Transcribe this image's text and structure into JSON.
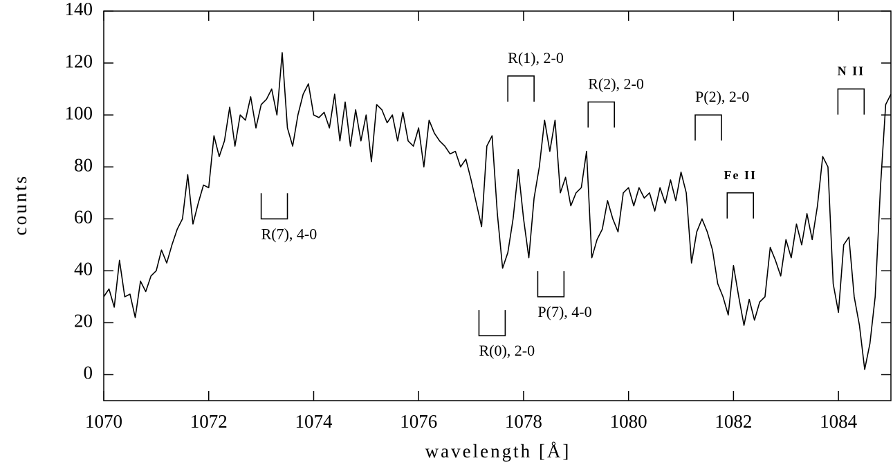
{
  "chart_data": {
    "type": "line",
    "xlabel": "wavelength [Å]",
    "ylabel": "counts",
    "xlim": [
      1070,
      1085
    ],
    "ylim": [
      -10,
      140
    ],
    "xticks": [
      1070,
      1072,
      1074,
      1076,
      1078,
      1080,
      1082,
      1084
    ],
    "yticks": [
      0,
      20,
      40,
      60,
      80,
      100,
      120,
      140
    ],
    "color": "#000000",
    "x": [
      1070.0,
      1070.1,
      1070.2,
      1070.3,
      1070.4,
      1070.5,
      1070.6,
      1070.7,
      1070.8,
      1070.9,
      1071.0,
      1071.1,
      1071.2,
      1071.3,
      1071.4,
      1071.5,
      1071.6,
      1071.7,
      1071.8,
      1071.9,
      1072.0,
      1072.1,
      1072.2,
      1072.3,
      1072.4,
      1072.5,
      1072.6,
      1072.7,
      1072.8,
      1072.9,
      1073.0,
      1073.1,
      1073.2,
      1073.3,
      1073.4,
      1073.5,
      1073.6,
      1073.7,
      1073.8,
      1073.9,
      1074.0,
      1074.1,
      1074.2,
      1074.3,
      1074.4,
      1074.5,
      1074.6,
      1074.7,
      1074.8,
      1074.9,
      1075.0,
      1075.1,
      1075.2,
      1075.3,
      1075.4,
      1075.5,
      1075.6,
      1075.7,
      1075.8,
      1075.9,
      1076.0,
      1076.1,
      1076.2,
      1076.3,
      1076.4,
      1076.5,
      1076.6,
      1076.7,
      1076.8,
      1076.9,
      1077.0,
      1077.1,
      1077.2,
      1077.3,
      1077.4,
      1077.5,
      1077.6,
      1077.7,
      1077.8,
      1077.9,
      1078.0,
      1078.1,
      1078.2,
      1078.3,
      1078.4,
      1078.5,
      1078.6,
      1078.7,
      1078.8,
      1078.9,
      1079.0,
      1079.1,
      1079.2,
      1079.3,
      1079.4,
      1079.5,
      1079.6,
      1079.7,
      1079.8,
      1079.9,
      1080.0,
      1080.1,
      1080.2,
      1080.3,
      1080.4,
      1080.5,
      1080.6,
      1080.7,
      1080.8,
      1080.9,
      1081.0,
      1081.1,
      1081.2,
      1081.3,
      1081.4,
      1081.5,
      1081.6,
      1081.7,
      1081.8,
      1081.9,
      1082.0,
      1082.1,
      1082.2,
      1082.3,
      1082.4,
      1082.5,
      1082.6,
      1082.7,
      1082.8,
      1082.9,
      1083.0,
      1083.1,
      1083.2,
      1083.3,
      1083.4,
      1083.5,
      1083.6,
      1083.7,
      1083.8,
      1083.9,
      1084.0,
      1084.1,
      1084.2,
      1084.3,
      1084.4,
      1084.5,
      1084.6,
      1084.7,
      1084.8,
      1084.9,
      1085.0
    ],
    "values": [
      30,
      33,
      26,
      44,
      30,
      31,
      22,
      36,
      32,
      38,
      40,
      48,
      43,
      50,
      56,
      60,
      77,
      58,
      66,
      73,
      72,
      92,
      84,
      90,
      103,
      88,
      100,
      98,
      107,
      95,
      104,
      106,
      110,
      100,
      124,
      95,
      88,
      100,
      108,
      112,
      100,
      99,
      101,
      95,
      108,
      90,
      105,
      88,
      102,
      90,
      100,
      82,
      104,
      102,
      97,
      100,
      90,
      101,
      90,
      88,
      95,
      80,
      98,
      93,
      90,
      88,
      85,
      86,
      80,
      83,
      75,
      66,
      57,
      88,
      92,
      62,
      41,
      47,
      60,
      79,
      60,
      45,
      68,
      80,
      98,
      86,
      98,
      70,
      76,
      65,
      70,
      72,
      86,
      45,
      52,
      56,
      67,
      60,
      55,
      70,
      72,
      65,
      72,
      68,
      70,
      63,
      72,
      66,
      75,
      67,
      78,
      70,
      43,
      55,
      60,
      55,
      48,
      35,
      30,
      23,
      42,
      30,
      19,
      29,
      21,
      28,
      30,
      49,
      44,
      38,
      52,
      45,
      58,
      50,
      62,
      52,
      65,
      84,
      80,
      35,
      24,
      50,
      53,
      30,
      19,
      2,
      12,
      30,
      72,
      104,
      108
    ],
    "annotations": [
      {
        "label": "R(7), 4-0",
        "x": [
          1073.0,
          1073.5
        ],
        "y": 60,
        "side": "below"
      },
      {
        "label": "R(0), 2-0",
        "x": [
          1077.15,
          1077.65
        ],
        "y": 15,
        "side": "below"
      },
      {
        "label": "P(7), 4-0",
        "x": [
          1078.27,
          1078.77
        ],
        "y": 30,
        "side": "below"
      },
      {
        "label": "R(1), 2-0",
        "x": [
          1077.7,
          1078.2
        ],
        "y": 115,
        "side": "above"
      },
      {
        "label": "R(2), 2-0",
        "x": [
          1079.23,
          1079.73
        ],
        "y": 105,
        "side": "above"
      },
      {
        "label": "P(2), 2-0",
        "x": [
          1081.27,
          1081.77
        ],
        "y": 100,
        "side": "above"
      },
      {
        "label": "Fe II",
        "x": [
          1081.88,
          1082.38
        ],
        "y": 70,
        "side": "above",
        "style": "bold"
      },
      {
        "label": "N II",
        "x": [
          1083.99,
          1084.49
        ],
        "y": 110,
        "side": "above",
        "style": "bold"
      }
    ]
  }
}
